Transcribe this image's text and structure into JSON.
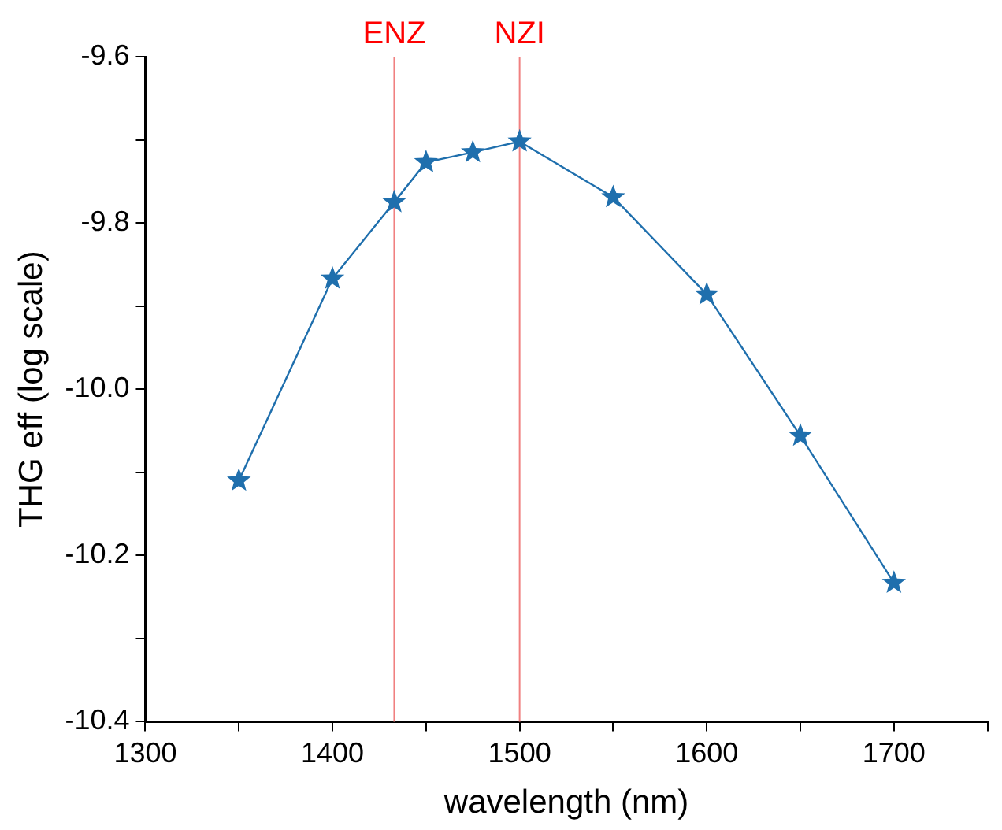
{
  "chart_data": {
    "type": "line",
    "xlabel": "wavelength (nm)",
    "ylabel": "THG eff (log scale)",
    "x": [
      1350,
      1400,
      1433,
      1450,
      1475,
      1500,
      1550,
      1600,
      1650,
      1700
    ],
    "series": [
      {
        "color": "#1f6fad",
        "values": [
          -10.11,
          -9.867,
          -9.775,
          -9.727,
          -9.715,
          -9.702,
          -9.769,
          -9.886,
          -10.056,
          -10.233
        ]
      }
    ],
    "xlim": [
      1300,
      1750
    ],
    "xticks": [
      1300,
      {
        "value": 1350,
        "label": null
      },
      1400,
      {
        "value": 1450,
        "label": null
      },
      1500,
      {
        "value": 1550,
        "label": null
      },
      1600,
      {
        "value": 1650,
        "label": null
      },
      1700,
      {
        "value": 1750,
        "label": null
      }
    ],
    "ylim": [
      -10.4,
      -9.6
    ],
    "yticks": [
      {
        "value": -10.4,
        "label": "-10.4"
      },
      {
        "value": -10.3,
        "label": null
      },
      {
        "value": -10.2,
        "label": "-10.2"
      },
      {
        "value": -10.1,
        "label": null
      },
      {
        "value": -10,
        "label": "-10.0"
      },
      {
        "value": -9.9,
        "label": null
      },
      {
        "value": -9.8,
        "label": "-9.8"
      },
      {
        "value": -9.7,
        "label": null
      },
      {
        "value": -9.6,
        "label": "-9.6"
      }
    ],
    "ref_lines": [
      {
        "axis": "x",
        "value": 1433,
        "label": "ENZ",
        "color": "#f08080"
      },
      {
        "axis": "x",
        "value": 1500,
        "label": "NZI",
        "color": "#f08080"
      }
    ],
    "marker": "star",
    "grid": false,
    "legend": false
  }
}
